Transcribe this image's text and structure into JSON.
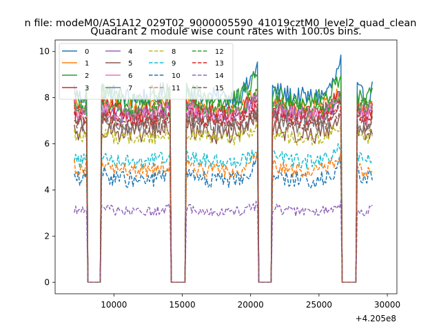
{
  "chart_data": {
    "type": "line",
    "suptitle": "n file: modeM0/AS1A12_029T02_9000005590_41019cztM0_level2_quad_clean",
    "title": "Quadrant 2 module wise count rates with 100.0s bins.",
    "xlabel": "",
    "ylabel": "",
    "x_offset_label": "+4.205e8",
    "xlim": [
      5700,
      30700
    ],
    "ylim": [
      -0.5,
      10.5
    ],
    "x_ticks": [
      10000,
      15000,
      20000,
      25000,
      30000
    ],
    "x_tick_labels": [
      "10000",
      "15000",
      "20000",
      "25000",
      "30000"
    ],
    "y_ticks": [
      0,
      2,
      4,
      6,
      8,
      10
    ],
    "y_tick_labels": [
      "0",
      "2",
      "4",
      "6",
      "8",
      "10"
    ],
    "legend_position": "upper-left",
    "active_intervals": [
      [
        7100,
        8000
      ],
      [
        9100,
        14100
      ],
      [
        15300,
        20500
      ],
      [
        21600,
        26600
      ],
      [
        27800,
        28950
      ]
    ],
    "gap_value": 0,
    "series": [
      {
        "name": "0",
        "color": "#1f77b4",
        "style": "solid",
        "level": 8.1,
        "variation": 0.65,
        "peak": 9.9
      },
      {
        "name": "1",
        "color": "#ff7f0e",
        "style": "solid",
        "level": 7.6,
        "variation": 0.55,
        "peak": 8.4
      },
      {
        "name": "2",
        "color": "#2ca02c",
        "style": "solid",
        "level": 8.0,
        "variation": 0.6,
        "peak": 9.5
      },
      {
        "name": "3",
        "color": "#d62728",
        "style": "solid",
        "level": 7.4,
        "variation": 0.6,
        "peak": 8.5
      },
      {
        "name": "4",
        "color": "#9467bd",
        "style": "solid",
        "level": 7.3,
        "variation": 0.55,
        "peak": 8.3
      },
      {
        "name": "5",
        "color": "#8c564b",
        "style": "solid",
        "level": 6.5,
        "variation": 0.6,
        "peak": 7.6
      },
      {
        "name": "6",
        "color": "#e377c2",
        "style": "solid",
        "level": 7.3,
        "variation": 0.6,
        "peak": 8.2
      },
      {
        "name": "7",
        "color": "#7f7f7f",
        "style": "solid",
        "level": 6.9,
        "variation": 0.55,
        "peak": 7.9
      },
      {
        "name": "8",
        "color": "#bcbd22",
        "style": "dashed",
        "level": 6.3,
        "variation": 0.45,
        "peak": 7.0
      },
      {
        "name": "9",
        "color": "#17becf",
        "style": "dashed",
        "level": 5.3,
        "variation": 0.45,
        "peak": 6.1
      },
      {
        "name": "10",
        "color": "#1f77b4",
        "style": "dashed",
        "level": 4.5,
        "variation": 0.5,
        "peak": 5.6
      },
      {
        "name": "11",
        "color": "#ff7f0e",
        "style": "dashed",
        "level": 4.9,
        "variation": 0.45,
        "peak": 5.9
      },
      {
        "name": "12",
        "color": "#2ca02c",
        "style": "dashed",
        "level": 7.6,
        "variation": 0.5,
        "peak": 8.4
      },
      {
        "name": "13",
        "color": "#d62728",
        "style": "dashed",
        "level": 7.1,
        "variation": 0.5,
        "peak": 8.0
      },
      {
        "name": "14",
        "color": "#9467bd",
        "style": "dashed",
        "level": 3.1,
        "variation": 0.3,
        "peak": 3.6
      },
      {
        "name": "15",
        "color": "#8c564b",
        "style": "dashed",
        "level": 6.9,
        "variation": 0.45,
        "peak": 7.7
      }
    ]
  }
}
